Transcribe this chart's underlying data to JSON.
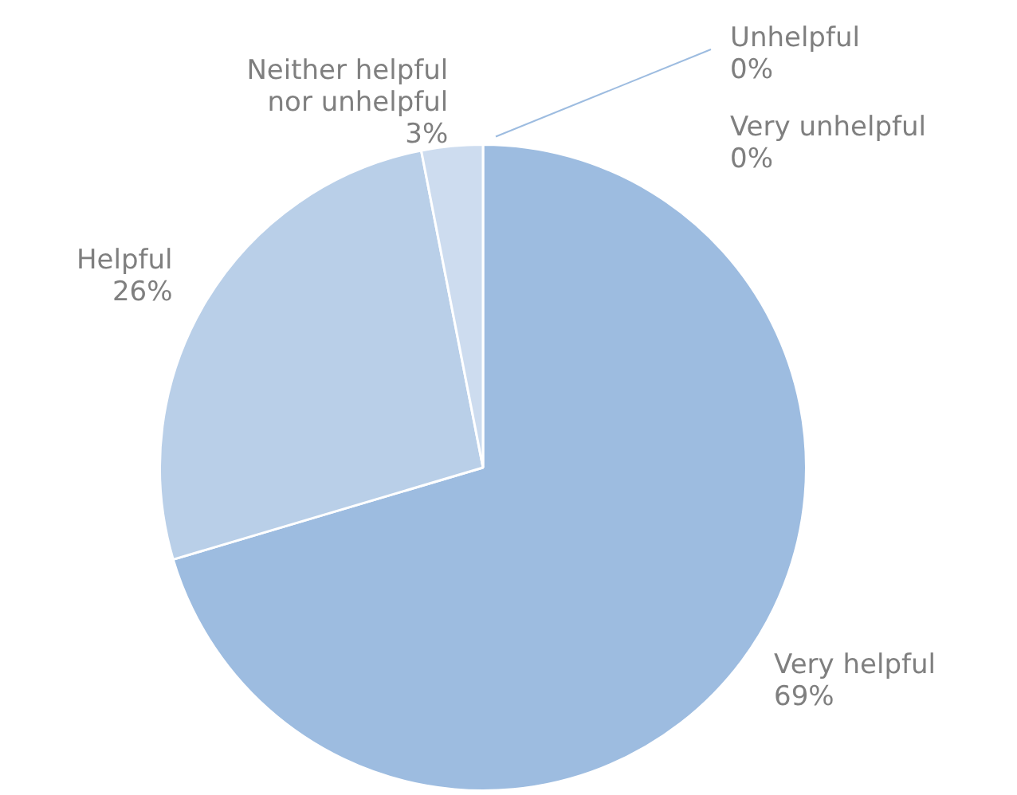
{
  "chart_data": {
    "type": "pie",
    "categories": [
      "Very helpful",
      "Helpful",
      "Neither helpful nor unhelpful",
      "Unhelpful",
      "Very unhelpful"
    ],
    "values": [
      69,
      26,
      3,
      0,
      0
    ],
    "value_labels": [
      "69%",
      "26%",
      "3%",
      "0%",
      "0%"
    ],
    "colors": [
      "#9dbce0",
      "#b9cfe8",
      "#cddcef",
      "#dde7f4",
      "#e8eff8"
    ],
    "legend": false
  }
}
